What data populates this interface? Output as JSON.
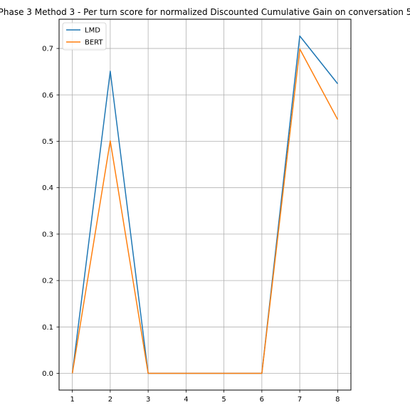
{
  "chart_data": {
    "type": "line",
    "title": "Phase 3 Method 3 - Per turn score for normalized Discounted Cumulative Gain on conversation 5",
    "xlabel": "",
    "ylabel": "",
    "x": [
      1,
      2,
      3,
      4,
      5,
      6,
      7,
      8
    ],
    "xticks": [
      "1",
      "2",
      "3",
      "4",
      "5",
      "6",
      "7",
      "8"
    ],
    "yticks": [
      "0.0",
      "0.1",
      "0.2",
      "0.3",
      "0.4",
      "0.5",
      "0.6",
      "0.7"
    ],
    "xlim": [
      0.65,
      8.35
    ],
    "ylim": [
      -0.036,
      0.763
    ],
    "grid": true,
    "legend_position": "top-left",
    "series": [
      {
        "name": "LMD",
        "color": "#1f77b4",
        "values": [
          0.0,
          0.651,
          0.0,
          0.0,
          0.0,
          0.0,
          0.727,
          0.624
        ]
      },
      {
        "name": "BERT",
        "color": "#ff7f0e",
        "values": [
          0.0,
          0.501,
          0.0,
          0.0,
          0.0,
          0.0,
          0.699,
          0.547
        ]
      }
    ]
  }
}
